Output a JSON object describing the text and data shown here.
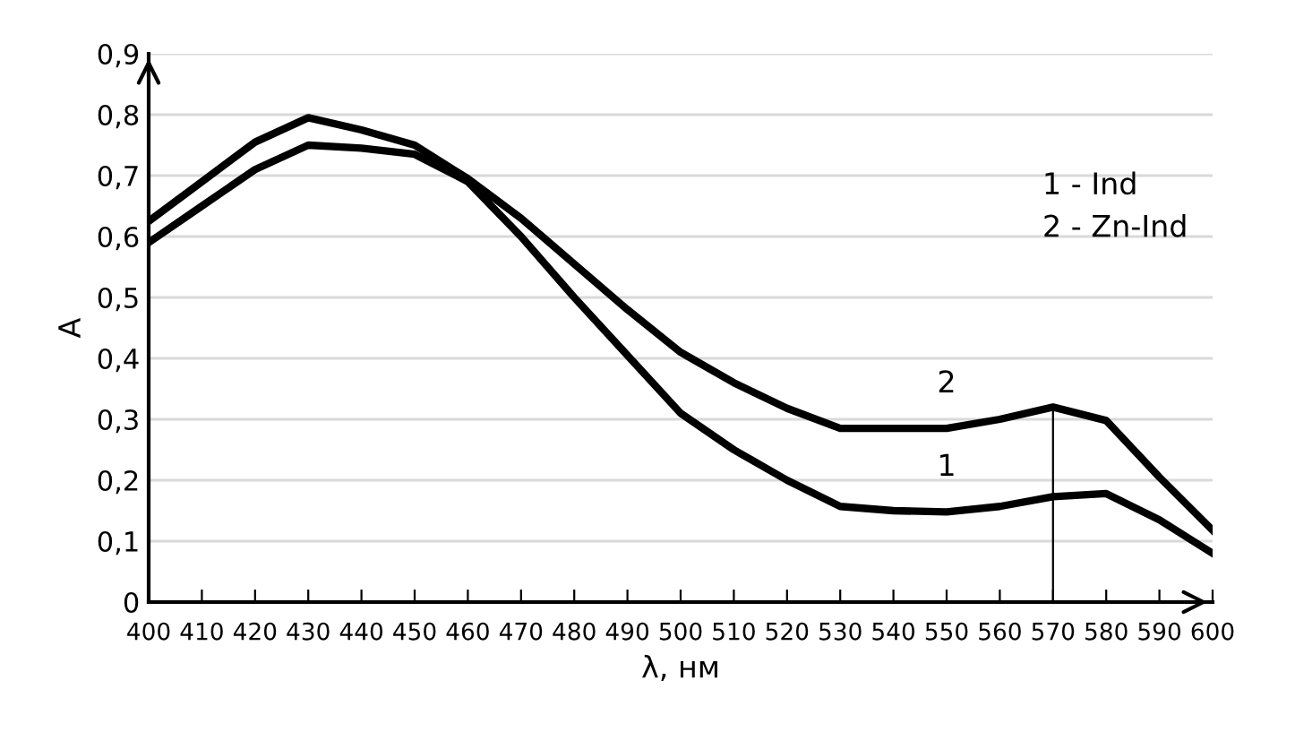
{
  "chart_data": {
    "type": "line",
    "xlabel": "λ, нм",
    "ylabel": "A",
    "x": [
      400,
      410,
      420,
      430,
      440,
      450,
      460,
      470,
      480,
      490,
      500,
      510,
      520,
      530,
      540,
      550,
      560,
      570,
      580,
      590,
      600
    ],
    "series": [
      {
        "color": "#000000",
        "values": [
          0.59,
          0.65,
          0.71,
          0.75,
          0.745,
          0.735,
          0.69,
          0.6,
          0.5,
          0.405,
          0.31,
          0.25,
          0.2,
          0.157,
          0.15,
          0.148,
          0.157,
          0.173,
          0.178,
          0.135,
          0.08
        ]
      },
      {
        "color": "#000000",
        "values": [
          0.625,
          0.69,
          0.755,
          0.795,
          0.775,
          0.75,
          0.695,
          0.63,
          0.555,
          0.48,
          0.41,
          0.36,
          0.318,
          0.285,
          0.285,
          0.285,
          0.3,
          0.32,
          0.298,
          0.205,
          0.118
        ]
      }
    ],
    "xlim": [
      400,
      600
    ],
    "xticks": [
      400,
      410,
      420,
      430,
      440,
      450,
      460,
      470,
      480,
      490,
      500,
      510,
      520,
      530,
      540,
      550,
      560,
      570,
      580,
      590,
      600
    ],
    "ylim": [
      0,
      0.9
    ],
    "yticks": [
      0,
      {
        "value": 0.1,
        "label": "0,1"
      },
      {
        "value": 0.2,
        "label": "0,2"
      },
      {
        "value": 0.3,
        "label": "0,3"
      },
      {
        "value": 0.4,
        "label": "0,4"
      },
      {
        "value": 0.5,
        "label": "0,5"
      },
      {
        "value": 0.6,
        "label": "0,6"
      },
      {
        "value": 0.7,
        "label": "0,7"
      },
      {
        "value": 0.8,
        "label": "0,8"
      },
      {
        "value": 0.9,
        "label": "0,9"
      }
    ],
    "grid": "y",
    "marker": "none",
    "line_style": "solid",
    "ref_lines": [
      {
        "axis": "x",
        "value": 570,
        "color": "#000000"
      }
    ],
    "annotations": [
      {
        "text": "2",
        "x": 550,
        "y": 0.285
      },
      {
        "text": "1",
        "x": 550,
        "y": 0.148
      },
      "1 - Ind\n2 - Zn-Ind"
    ]
  }
}
